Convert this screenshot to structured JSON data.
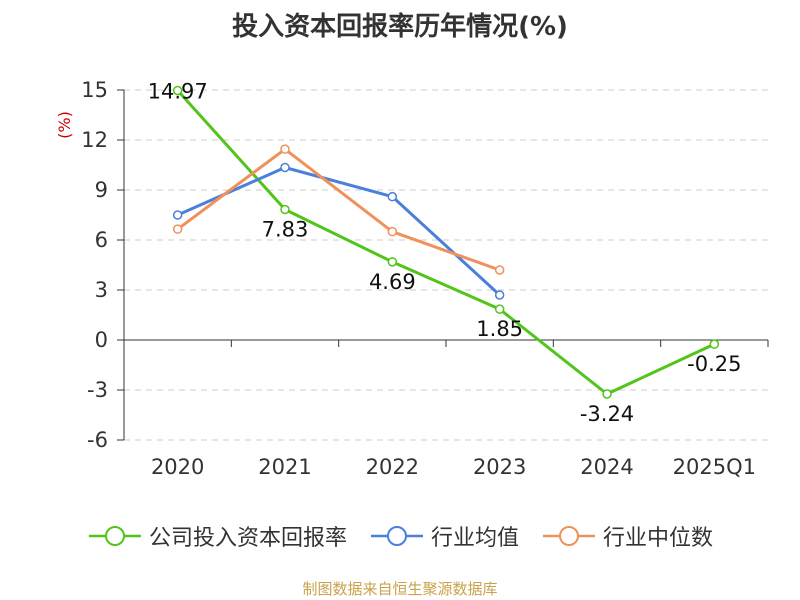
{
  "chart_data": {
    "type": "line",
    "title": "投入资本回报率历年情况(%)",
    "ylabel": "(%)",
    "xlabel": "",
    "categories": [
      "2020",
      "2021",
      "2022",
      "2023",
      "2024",
      "2025Q1"
    ],
    "ylim": [
      -6,
      15
    ],
    "yticks": [
      15,
      12,
      9,
      6,
      3,
      0,
      -3,
      -6
    ],
    "ytick_labels": [
      "15",
      "12",
      "9",
      "6",
      "3",
      "0",
      "-3",
      "-6"
    ],
    "grid": "horizontal-dashed",
    "legend_position": "bottom",
    "series": [
      {
        "name": "公司投入资本回报率",
        "color": "#52c41a",
        "values": [
          14.97,
          7.83,
          4.69,
          1.85,
          -3.24,
          -0.25
        ],
        "labels": [
          "14.97",
          "7.83",
          "4.69",
          "1.85",
          "-3.24",
          "-0.25"
        ]
      },
      {
        "name": "行业均值",
        "color": "#4a7fdc",
        "values": [
          7.5,
          10.35,
          8.6,
          2.7,
          null,
          null
        ]
      },
      {
        "name": "行业中位数",
        "color": "#f0905a",
        "values": [
          6.65,
          11.45,
          6.5,
          4.2,
          null,
          null
        ]
      }
    ]
  },
  "footer": {
    "source": "制图数据来自恒生聚源数据库"
  }
}
